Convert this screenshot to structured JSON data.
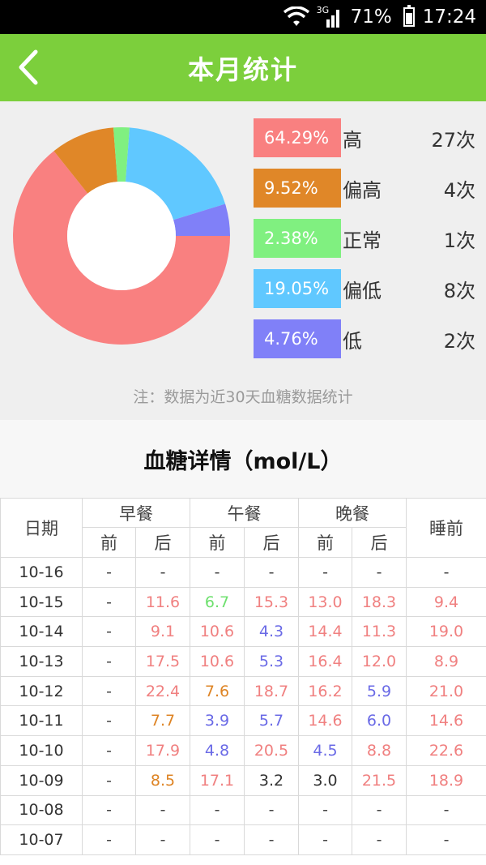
{
  "status": {
    "network": "3G",
    "battery": "71%",
    "time": "17:24"
  },
  "header": {
    "title": "本月统计",
    "back_icon": "chevron-left-icon"
  },
  "summary": {
    "chart_data": {
      "type": "pie",
      "slices": [
        {
          "label": "高",
          "percent": 64.29,
          "count": 27,
          "color": "#f98080"
        },
        {
          "label": "偏高",
          "percent": 9.52,
          "count": 4,
          "color": "#e08728"
        },
        {
          "label": "正常",
          "percent": 2.38,
          "count": 1,
          "color": "#80f080"
        },
        {
          "label": "偏低",
          "percent": 19.05,
          "count": 8,
          "color": "#60c8ff"
        },
        {
          "label": "低",
          "percent": 4.76,
          "count": 2,
          "color": "#8080f8"
        }
      ]
    },
    "legend": [
      {
        "percent": "64.29%",
        "label": "高",
        "count": "27次"
      },
      {
        "percent": "9.52%",
        "label": "偏高",
        "count": "4次"
      },
      {
        "percent": "2.38%",
        "label": "正常",
        "count": "1次"
      },
      {
        "percent": "19.05%",
        "label": "偏低",
        "count": "8次"
      },
      {
        "percent": "4.76%",
        "label": "低",
        "count": "2次"
      }
    ],
    "note": "注：数据为近30天血糖数据统计"
  },
  "detail": {
    "title": "血糖详情（mol/L）",
    "headers": {
      "date": "日期",
      "breakfast": "早餐",
      "lunch": "午餐",
      "dinner": "晚餐",
      "bedtime": "睡前",
      "before": "前",
      "after": "后"
    },
    "rows": [
      {
        "date": "10-16",
        "cells": [
          [
            "-",
            ""
          ],
          [
            "-",
            ""
          ],
          [
            "-",
            ""
          ],
          [
            "-",
            ""
          ],
          [
            "-",
            ""
          ],
          [
            "-",
            ""
          ],
          [
            "-",
            ""
          ]
        ]
      },
      {
        "date": "10-15",
        "cells": [
          [
            "-",
            ""
          ],
          [
            "11.6",
            "high"
          ],
          [
            "6.7",
            "norm"
          ],
          [
            "15.3",
            "high"
          ],
          [
            "13.0",
            "high"
          ],
          [
            "18.3",
            "high"
          ],
          [
            "9.4",
            "high"
          ]
        ]
      },
      {
        "date": "10-14",
        "cells": [
          [
            "-",
            ""
          ],
          [
            "9.1",
            "high"
          ],
          [
            "10.6",
            "high"
          ],
          [
            "4.3",
            "mlow"
          ],
          [
            "14.4",
            "high"
          ],
          [
            "11.3",
            "high"
          ],
          [
            "19.0",
            "high"
          ]
        ]
      },
      {
        "date": "10-13",
        "cells": [
          [
            "-",
            ""
          ],
          [
            "17.5",
            "high"
          ],
          [
            "10.6",
            "high"
          ],
          [
            "5.3",
            "mlow"
          ],
          [
            "16.4",
            "high"
          ],
          [
            "12.0",
            "high"
          ],
          [
            "8.9",
            "high"
          ]
        ]
      },
      {
        "date": "10-12",
        "cells": [
          [
            "-",
            ""
          ],
          [
            "22.4",
            "high"
          ],
          [
            "7.6",
            "mhigh"
          ],
          [
            "18.7",
            "high"
          ],
          [
            "16.2",
            "high"
          ],
          [
            "5.9",
            "mlow"
          ],
          [
            "21.0",
            "high"
          ]
        ]
      },
      {
        "date": "10-11",
        "cells": [
          [
            "-",
            ""
          ],
          [
            "7.7",
            "mhigh"
          ],
          [
            "3.9",
            "mlow"
          ],
          [
            "5.7",
            "mlow"
          ],
          [
            "14.6",
            "high"
          ],
          [
            "6.0",
            "mlow"
          ],
          [
            "14.6",
            "high"
          ]
        ]
      },
      {
        "date": "10-10",
        "cells": [
          [
            "-",
            ""
          ],
          [
            "17.9",
            "high"
          ],
          [
            "4.8",
            "mlow"
          ],
          [
            "20.5",
            "high"
          ],
          [
            "4.5",
            "mlow"
          ],
          [
            "8.8",
            "high"
          ],
          [
            "22.6",
            "high"
          ]
        ]
      },
      {
        "date": "10-09",
        "cells": [
          [
            "-",
            ""
          ],
          [
            "8.5",
            "mhigh"
          ],
          [
            "17.1",
            "high"
          ],
          [
            "3.2",
            "dark"
          ],
          [
            "3.0",
            "dark"
          ],
          [
            "21.5",
            "high"
          ],
          [
            "18.9",
            "high"
          ]
        ]
      },
      {
        "date": "10-08",
        "cells": [
          [
            "-",
            ""
          ],
          [
            "-",
            ""
          ],
          [
            "-",
            ""
          ],
          [
            "-",
            ""
          ],
          [
            "-",
            ""
          ],
          [
            "-",
            ""
          ],
          [
            "-",
            ""
          ]
        ]
      },
      {
        "date": "10-07",
        "cells": [
          [
            "-",
            ""
          ],
          [
            "-",
            ""
          ],
          [
            "-",
            ""
          ],
          [
            "-",
            ""
          ],
          [
            "-",
            ""
          ],
          [
            "-",
            ""
          ],
          [
            "-",
            ""
          ]
        ]
      }
    ]
  }
}
